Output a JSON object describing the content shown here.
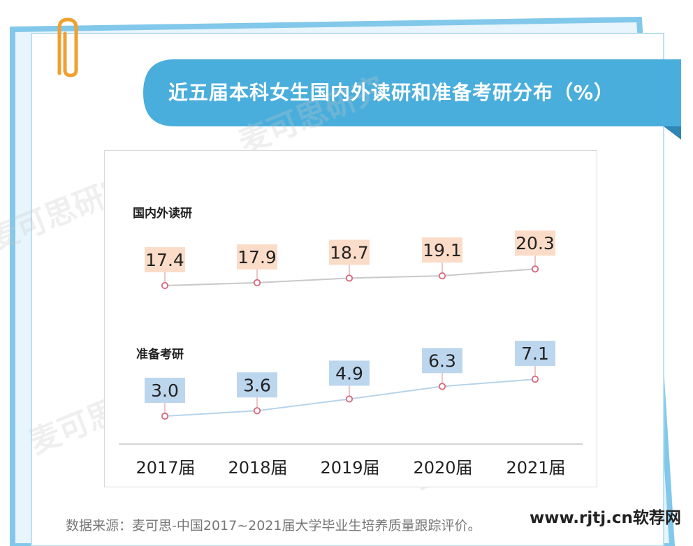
{
  "title": "近五届本科女生国内外读研和准备考研分布（%）",
  "source": "数据来源：麦可思-中国2017~2021届大学毕业生培养质量跟踪评价。",
  "site_mark": "www.rjtj.cn软荐网",
  "watermark": "麦可思研究",
  "colors": {
    "banner": "#4aaedc",
    "frame_border": "#82c8ea",
    "clip": "#f0a030",
    "series1_label_bg": "#fbdcc8",
    "series2_label_bg": "#bcd6ee",
    "series1_line": "#c8c8c8",
    "series2_line": "#b7d4ea",
    "marker": "#d9667a"
  },
  "chart_data": {
    "type": "line",
    "categories": [
      "2017届",
      "2018届",
      "2019届",
      "2020届",
      "2021届"
    ],
    "series": [
      {
        "name": "国内外读研",
        "values": [
          17.4,
          17.9,
          18.7,
          19.1,
          20.3
        ]
      },
      {
        "name": "准备考研",
        "values": [
          3.0,
          3.6,
          4.9,
          6.3,
          7.1
        ]
      }
    ],
    "title": "近五届本科女生国内外读研和准备考研分布（%）",
    "xlabel": "",
    "ylabel": "",
    "grid": false,
    "legend": "none"
  }
}
